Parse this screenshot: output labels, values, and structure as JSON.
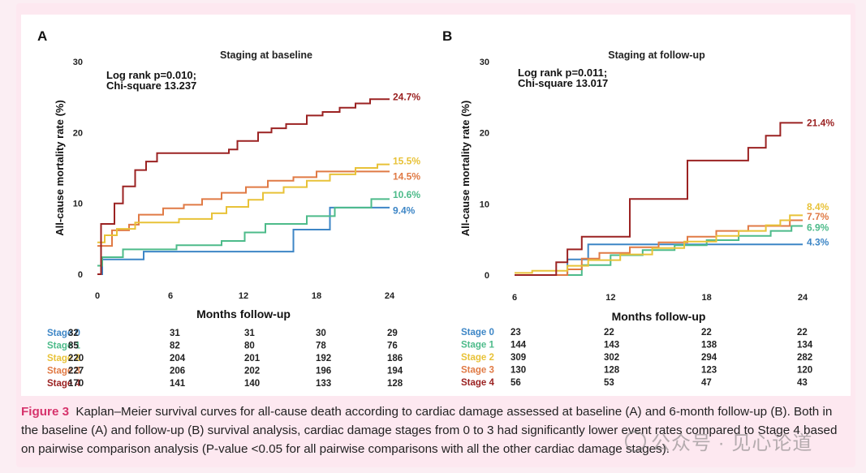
{
  "colors": {
    "stage0": "#3d86c6",
    "stage1": "#4dbb8a",
    "stage2": "#e8c238",
    "stage3": "#e07a45",
    "stage4": "#9b2222",
    "caption_accent": "#d6336c"
  },
  "chart_data": [
    {
      "panel": "A",
      "type": "line",
      "title": "Staging at baseline",
      "xlabel": "Months follow-up",
      "ylabel": "All-cause mortality rate (%)",
      "xlim": [
        0,
        24
      ],
      "ylim": [
        0,
        30
      ],
      "xticks": [
        "0",
        "6",
        "12",
        "18",
        "24"
      ],
      "yticks": [
        "0",
        "10",
        "20",
        "30"
      ],
      "stat_line1": "Log rank p=0.010;",
      "stat_line2": "Chi-square 13.237",
      "series": [
        {
          "name": "Stage 0",
          "color_key": "stage0",
          "end_label": "9.4%",
          "points": [
            [
              0,
              0
            ],
            [
              0.4,
              0
            ],
            [
              0.4,
              2.1
            ],
            [
              3.8,
              2.1
            ],
            [
              3.8,
              3.2
            ],
            [
              13.2,
              3.2
            ],
            [
              13.2,
              3.2
            ],
            [
              16.1,
              3.2
            ],
            [
              16.1,
              6.3
            ],
            [
              19.1,
              6.3
            ],
            [
              19.1,
              9.4
            ],
            [
              24,
              9.4
            ]
          ]
        },
        {
          "name": "Stage 1",
          "color_key": "stage1",
          "end_label": "10.6%",
          "points": [
            [
              0,
              1.2
            ],
            [
              0.4,
              1.2
            ],
            [
              0.4,
              2.4
            ],
            [
              2.1,
              2.4
            ],
            [
              2.1,
              3.5
            ],
            [
              4.7,
              3.5
            ],
            [
              4.7,
              3.5
            ],
            [
              6.5,
              3.5
            ],
            [
              6.5,
              4.1
            ],
            [
              10.2,
              4.1
            ],
            [
              10.2,
              4.7
            ],
            [
              12.1,
              4.7
            ],
            [
              12.1,
              5.9
            ],
            [
              13.8,
              5.9
            ],
            [
              13.8,
              7.1
            ],
            [
              17.2,
              7.1
            ],
            [
              17.2,
              8.2
            ],
            [
              19.5,
              8.2
            ],
            [
              19.5,
              9.4
            ],
            [
              22.5,
              9.4
            ],
            [
              22.5,
              10.6
            ],
            [
              24,
              10.6
            ]
          ]
        },
        {
          "name": "Stage 2",
          "color_key": "stage2",
          "end_label": "15.5%",
          "points": [
            [
              0,
              4.5
            ],
            [
              0.6,
              4.5
            ],
            [
              0.6,
              5.5
            ],
            [
              1.6,
              5.5
            ],
            [
              1.6,
              6.4
            ],
            [
              3.1,
              6.4
            ],
            [
              3.1,
              7.3
            ],
            [
              6.7,
              7.3
            ],
            [
              6.7,
              7.8
            ],
            [
              9.4,
              7.8
            ],
            [
              9.4,
              8.6
            ],
            [
              10.6,
              8.6
            ],
            [
              10.6,
              9.5
            ],
            [
              12.4,
              9.5
            ],
            [
              12.4,
              10.5
            ],
            [
              13.6,
              10.5
            ],
            [
              13.6,
              11.5
            ],
            [
              15.3,
              11.5
            ],
            [
              15.3,
              12.3
            ],
            [
              17.2,
              12.3
            ],
            [
              17.2,
              13.2
            ],
            [
              19.1,
              13.2
            ],
            [
              19.1,
              14.1
            ],
            [
              21.2,
              14.1
            ],
            [
              21.2,
              15.0
            ],
            [
              23,
              15.0
            ],
            [
              23,
              15.5
            ],
            [
              24,
              15.5
            ]
          ]
        },
        {
          "name": "Stage 3",
          "color_key": "stage3",
          "end_label": "14.5%",
          "points": [
            [
              0,
              4.0
            ],
            [
              1.2,
              4.0
            ],
            [
              1.2,
              6.2
            ],
            [
              2.6,
              6.2
            ],
            [
              2.6,
              7.0
            ],
            [
              3.4,
              7.0
            ],
            [
              3.4,
              8.4
            ],
            [
              5.4,
              8.4
            ],
            [
              5.4,
              9.3
            ],
            [
              7.1,
              9.3
            ],
            [
              7.1,
              9.8
            ],
            [
              8.6,
              9.8
            ],
            [
              8.6,
              10.6
            ],
            [
              10.2,
              10.6
            ],
            [
              10.2,
              11.5
            ],
            [
              12.2,
              11.5
            ],
            [
              12.2,
              12.3
            ],
            [
              14.0,
              12.3
            ],
            [
              14.0,
              13.2
            ],
            [
              16.1,
              13.2
            ],
            [
              16.1,
              13.7
            ],
            [
              18.0,
              13.7
            ],
            [
              18.0,
              14.5
            ],
            [
              24,
              14.5
            ]
          ]
        },
        {
          "name": "Stage 4",
          "color_key": "stage4",
          "end_label": "24.7%",
          "points": [
            [
              0,
              0
            ],
            [
              0.3,
              0
            ],
            [
              0.3,
              7.1
            ],
            [
              1.4,
              7.1
            ],
            [
              1.4,
              10.0
            ],
            [
              2.1,
              10.0
            ],
            [
              2.1,
              12.4
            ],
            [
              3.1,
              12.4
            ],
            [
              3.1,
              14.7
            ],
            [
              4.0,
              14.7
            ],
            [
              4.0,
              15.9
            ],
            [
              4.9,
              15.9
            ],
            [
              4.9,
              17.1
            ],
            [
              10.8,
              17.1
            ],
            [
              10.8,
              17.6
            ],
            [
              11.5,
              17.6
            ],
            [
              11.5,
              18.8
            ],
            [
              13.2,
              18.8
            ],
            [
              13.2,
              20.0
            ],
            [
              14.3,
              20.0
            ],
            [
              14.3,
              20.6
            ],
            [
              15.5,
              20.6
            ],
            [
              15.5,
              21.2
            ],
            [
              17.2,
              21.2
            ],
            [
              17.2,
              22.4
            ],
            [
              18.5,
              22.4
            ],
            [
              18.5,
              22.9
            ],
            [
              19.9,
              22.9
            ],
            [
              19.9,
              23.5
            ],
            [
              21.2,
              23.5
            ],
            [
              21.2,
              24.1
            ],
            [
              22.4,
              24.1
            ],
            [
              22.4,
              24.7
            ],
            [
              24,
              24.7
            ]
          ]
        }
      ]
    },
    {
      "panel": "B",
      "type": "line",
      "title": "Staging at follow-up",
      "xlabel": "Months follow-up",
      "ylabel": "All-cause mortality rate (%)",
      "xlim": [
        6,
        24
      ],
      "ylim": [
        0,
        30
      ],
      "xticks": [
        "6",
        "12",
        "18",
        "24"
      ],
      "yticks": [
        "0",
        "10",
        "20",
        "30"
      ],
      "stat_line1": "Log rank p=0.011;",
      "stat_line2": "Chi-square 13.017",
      "series": [
        {
          "name": "Stage 0",
          "color_key": "stage0",
          "end_label": "4.3%",
          "points": [
            [
              6,
              0
            ],
            [
              9.3,
              0
            ],
            [
              9.3,
              2.2
            ],
            [
              10.6,
              2.2
            ],
            [
              10.6,
              4.3
            ],
            [
              24,
              4.3
            ]
          ]
        },
        {
          "name": "Stage 1",
          "color_key": "stage1",
          "end_label": "6.9%",
          "points": [
            [
              6,
              0
            ],
            [
              10.2,
              0
            ],
            [
              10.2,
              1.4
            ],
            [
              12,
              1.4
            ],
            [
              12,
              2.8
            ],
            [
              14,
              2.8
            ],
            [
              14,
              3.5
            ],
            [
              16,
              3.5
            ],
            [
              16,
              4.2
            ],
            [
              18,
              4.2
            ],
            [
              18,
              4.9
            ],
            [
              20,
              4.9
            ],
            [
              20,
              5.5
            ],
            [
              22,
              5.5
            ],
            [
              22,
              6.2
            ],
            [
              23.3,
              6.2
            ],
            [
              23.3,
              6.9
            ],
            [
              24,
              6.9
            ]
          ]
        },
        {
          "name": "Stage 2",
          "color_key": "stage2",
          "end_label": "8.4%",
          "points": [
            [
              6,
              0.3
            ],
            [
              7.1,
              0.3
            ],
            [
              7.1,
              0.6
            ],
            [
              9.3,
              0.6
            ],
            [
              9.3,
              1.3
            ],
            [
              10.6,
              1.3
            ],
            [
              10.6,
              2.1
            ],
            [
              12.6,
              2.1
            ],
            [
              12.6,
              2.9
            ],
            [
              14.6,
              2.9
            ],
            [
              14.6,
              3.8
            ],
            [
              16.6,
              3.8
            ],
            [
              16.6,
              4.7
            ],
            [
              18.6,
              4.7
            ],
            [
              18.6,
              5.5
            ],
            [
              20.0,
              5.5
            ],
            [
              20.0,
              6.2
            ],
            [
              21.7,
              6.2
            ],
            [
              21.7,
              7.0
            ],
            [
              22.6,
              7.0
            ],
            [
              22.6,
              7.7
            ],
            [
              23.2,
              7.7
            ],
            [
              23.2,
              8.4
            ],
            [
              24,
              8.4
            ]
          ]
        },
        {
          "name": "Stage 3",
          "color_key": "stage3",
          "end_label": "7.7%",
          "points": [
            [
              6,
              0
            ],
            [
              9.3,
              0
            ],
            [
              9.3,
              0.8
            ],
            [
              10.2,
              0.8
            ],
            [
              10.2,
              2.3
            ],
            [
              11.3,
              2.3
            ],
            [
              11.3,
              3.1
            ],
            [
              13.2,
              3.1
            ],
            [
              13.2,
              3.9
            ],
            [
              15.0,
              3.9
            ],
            [
              15.0,
              4.6
            ],
            [
              16.8,
              4.6
            ],
            [
              16.8,
              5.4
            ],
            [
              18.6,
              5.4
            ],
            [
              18.6,
              6.2
            ],
            [
              20.6,
              6.2
            ],
            [
              20.6,
              6.9
            ],
            [
              23.2,
              6.9
            ],
            [
              23.2,
              7.7
            ],
            [
              24,
              7.7
            ]
          ]
        },
        {
          "name": "Stage 4",
          "color_key": "stage4",
          "end_label": "21.4%",
          "points": [
            [
              6,
              0
            ],
            [
              8.6,
              0
            ],
            [
              8.6,
              1.8
            ],
            [
              9.3,
              1.8
            ],
            [
              9.3,
              3.6
            ],
            [
              10.2,
              3.6
            ],
            [
              10.2,
              5.4
            ],
            [
              13.2,
              5.4
            ],
            [
              13.2,
              10.7
            ],
            [
              16.8,
              10.7
            ],
            [
              16.8,
              16.1
            ],
            [
              20.6,
              16.1
            ],
            [
              20.6,
              17.9
            ],
            [
              21.7,
              17.9
            ],
            [
              21.7,
              19.6
            ],
            [
              22.6,
              19.6
            ],
            [
              22.6,
              21.4
            ],
            [
              24,
              21.4
            ]
          ]
        }
      ]
    }
  ],
  "risk_tables": [
    {
      "panel": "A",
      "rows": [
        {
          "label": "Stage 0",
          "color_key": "stage0",
          "values": [
            "32",
            "31",
            "31",
            "30",
            "29"
          ]
        },
        {
          "label": "Stage 1",
          "color_key": "stage1",
          "values": [
            "85",
            "82",
            "80",
            "78",
            "76"
          ]
        },
        {
          "label": "Stage 2",
          "color_key": "stage2",
          "values": [
            "220",
            "204",
            "201",
            "192",
            "186"
          ]
        },
        {
          "label": "Stage 3",
          "color_key": "stage3",
          "values": [
            "227",
            "206",
            "202",
            "196",
            "194"
          ]
        },
        {
          "label": "Stage 4",
          "color_key": "stage4",
          "values": [
            "170",
            "141",
            "140",
            "133",
            "128"
          ]
        }
      ]
    },
    {
      "panel": "B",
      "rows": [
        {
          "label": "Stage 0",
          "color_key": "stage0",
          "values": [
            "23",
            "22",
            "22",
            "22"
          ]
        },
        {
          "label": "Stage 1",
          "color_key": "stage1",
          "values": [
            "144",
            "143",
            "138",
            "134"
          ]
        },
        {
          "label": "Stage 2",
          "color_key": "stage2",
          "values": [
            "309",
            "302",
            "294",
            "282"
          ]
        },
        {
          "label": "Stage 3",
          "color_key": "stage3",
          "values": [
            "130",
            "128",
            "123",
            "120"
          ]
        },
        {
          "label": "Stage 4",
          "color_key": "stage4",
          "values": [
            "56",
            "53",
            "47",
            "43"
          ]
        }
      ]
    }
  ],
  "caption": {
    "label": "Figure 3",
    "text": "Kaplan–Meier survival curves for all-cause death according to cardiac damage assessed at baseline (A) and 6-month follow-up (B). Both in the baseline (A) and follow-up (B) survival analysis, cardiac damage stages from 0 to 3 had significantly lower event rates compared to Stage 4 based on pairwise comparison analysis (P-value <0.05 for all pairwise comparisons with all the other cardiac damage stages)."
  },
  "watermark": "公众号 · 见心论道"
}
